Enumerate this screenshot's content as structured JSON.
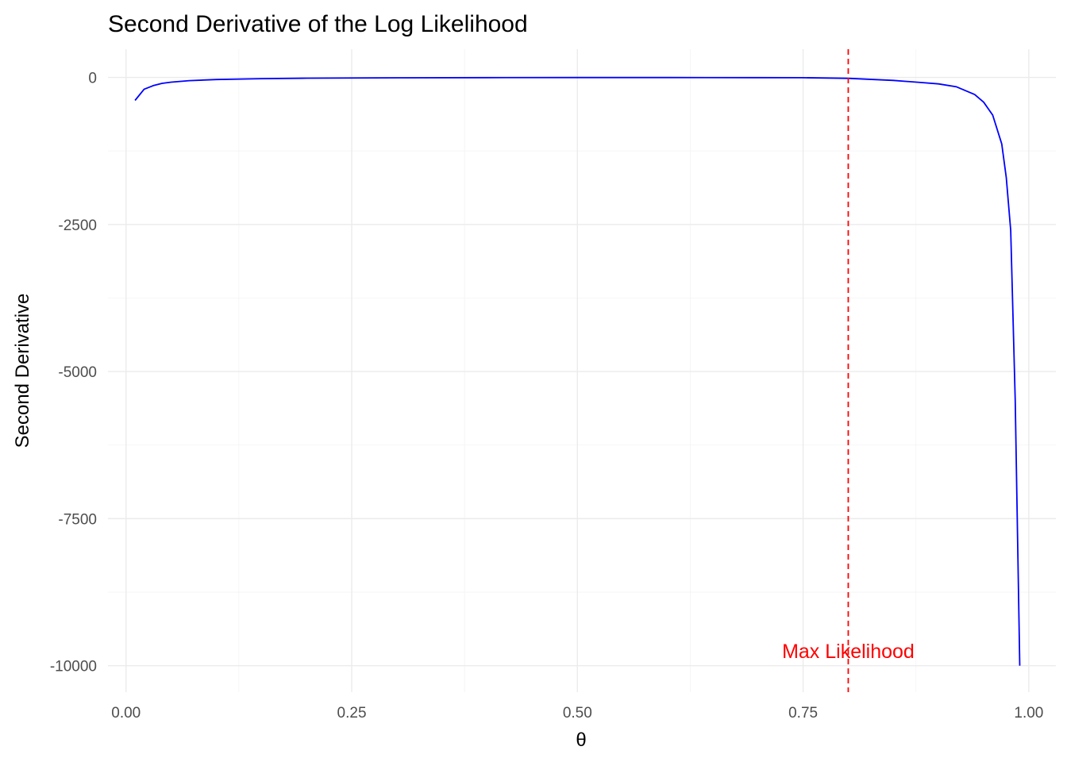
{
  "chart_data": {
    "type": "line",
    "title": "Second Derivative of the Log Likelihood",
    "xlabel": "θ",
    "ylabel": "Second Derivative",
    "xlim": [
      -0.02,
      1.03
    ],
    "ylim": [
      -10450,
      480
    ],
    "x_ticks": [
      0.0,
      0.25,
      0.5,
      0.75,
      1.0
    ],
    "x_tick_labels": [
      "0.00",
      "0.25",
      "0.50",
      "0.75",
      "1.00"
    ],
    "y_ticks": [
      0,
      -2500,
      -5000,
      -7500,
      -10000
    ],
    "y_tick_labels": [
      "0",
      "-2500",
      "-5000",
      "-7500",
      "-10000"
    ],
    "grid": true,
    "legend": "none",
    "series": [
      {
        "color": "#0000ff",
        "x": [
          0.01,
          0.02,
          0.03,
          0.04,
          0.05,
          0.07,
          0.1,
          0.15,
          0.2,
          0.3,
          0.4,
          0.5,
          0.6,
          0.7,
          0.75,
          0.8,
          0.85,
          0.88,
          0.9,
          0.92,
          0.94,
          0.95,
          0.96,
          0.97,
          0.975,
          0.98,
          0.985,
          0.99
        ],
        "y": [
          -390,
          -200,
          -140,
          -100,
          -80,
          -55,
          -35,
          -20,
          -12,
          -6,
          -3,
          -2,
          -2,
          -3,
          -4,
          -15,
          -50,
          -85,
          -110,
          -160,
          -290,
          -420,
          -640,
          -1130,
          -1700,
          -2600,
          -5500,
          -10000
        ]
      }
    ],
    "annotations": [
      {
        "type": "vline",
        "x": 0.8,
        "color": "#ff0000",
        "style": "dashed"
      },
      {
        "type": "text",
        "text": "Max Likelihood",
        "x": 0.8,
        "y": -9750,
        "color": "#ff0000"
      }
    ]
  }
}
